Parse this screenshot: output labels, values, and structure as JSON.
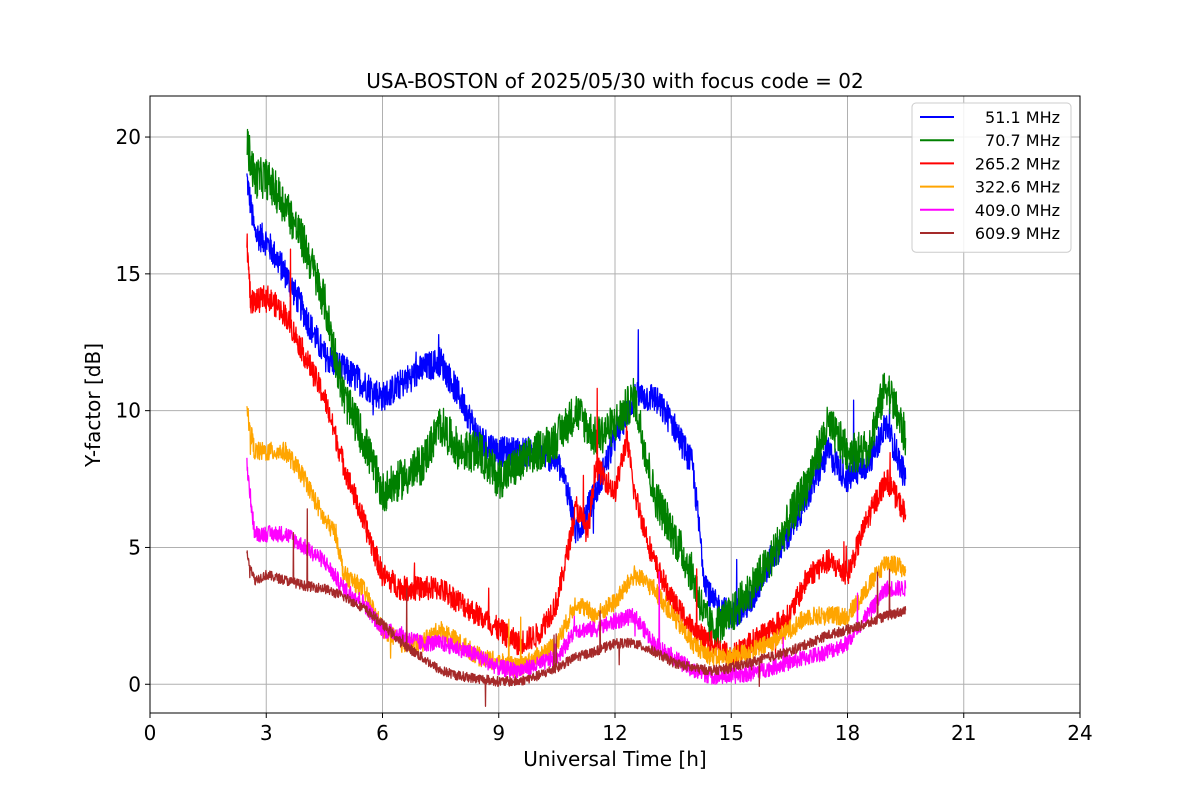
{
  "chart_data": {
    "type": "line",
    "title": "USA-BOSTON of 2025/05/30 with focus code = 02",
    "xlabel": "Universal Time [h]",
    "ylabel": "Y-factor [dB]",
    "xlim": [
      0,
      24
    ],
    "ylim": [
      -1.05,
      21.5
    ],
    "xticks": [
      0,
      3,
      6,
      9,
      12,
      15,
      18,
      21,
      24
    ],
    "yticks": [
      0,
      5,
      10,
      15,
      20
    ],
    "grid": true,
    "legend_position": "top-right",
    "series": [
      {
        "name": "51.1 MHz",
        "color": "#0000ff",
        "x": [
          2.5,
          2.7,
          3.0,
          3.5,
          4.0,
          4.5,
          5.0,
          5.5,
          6.0,
          6.5,
          7.0,
          7.5,
          8.0,
          8.5,
          9.0,
          9.5,
          10.0,
          10.5,
          10.8,
          11.0,
          11.5,
          12.0,
          12.5,
          13.0,
          13.5,
          14.0,
          14.3,
          14.5,
          15.0,
          15.5,
          16.0,
          16.5,
          17.0,
          17.5,
          18.0,
          18.5,
          19.0,
          19.5
        ],
        "y": [
          18.5,
          16.5,
          16.2,
          15.0,
          13.5,
          12.0,
          11.5,
          11.0,
          10.5,
          11.0,
          11.5,
          11.8,
          10.5,
          9.0,
          8.5,
          8.5,
          8.5,
          8.2,
          7.0,
          5.5,
          7.0,
          9.0,
          10.5,
          10.5,
          9.5,
          8.0,
          4.0,
          3.0,
          2.5,
          3.0,
          4.5,
          5.5,
          7.0,
          8.5,
          7.5,
          8.0,
          9.5,
          7.5
        ]
      },
      {
        "name": "70.7 MHz",
        "color": "#008000",
        "x": [
          2.5,
          2.7,
          3.0,
          3.5,
          4.0,
          4.5,
          5.0,
          5.5,
          6.0,
          6.5,
          7.0,
          7.5,
          8.0,
          8.5,
          9.0,
          9.5,
          10.0,
          10.5,
          11.0,
          11.5,
          12.0,
          12.5,
          13.0,
          13.5,
          14.0,
          14.3,
          14.5,
          15.0,
          15.5,
          16.0,
          16.5,
          17.0,
          17.5,
          18.0,
          18.5,
          19.0,
          19.5
        ],
        "y": [
          19.8,
          18.5,
          18.5,
          17.5,
          16.0,
          14.0,
          10.5,
          9.0,
          7.0,
          7.5,
          8.0,
          9.5,
          8.5,
          8.5,
          7.5,
          8.0,
          8.5,
          9.0,
          10.0,
          9.0,
          9.5,
          10.5,
          7.0,
          5.5,
          4.0,
          2.5,
          2.0,
          2.5,
          3.5,
          4.5,
          6.0,
          7.5,
          9.5,
          8.5,
          8.5,
          11.0,
          9.0
        ]
      },
      {
        "name": "265.2 MHz",
        "color": "#ff0000",
        "x": [
          2.5,
          2.6,
          2.8,
          3.0,
          3.5,
          4.0,
          4.5,
          5.0,
          5.5,
          6.0,
          6.5,
          7.0,
          7.5,
          8.0,
          8.5,
          9.0,
          9.5,
          10.0,
          10.5,
          10.8,
          11.0,
          11.3,
          11.5,
          12.0,
          12.3,
          12.5,
          13.0,
          13.5,
          14.0,
          14.5,
          15.0,
          15.5,
          16.0,
          16.5,
          17.0,
          17.5,
          18.0,
          18.5,
          19.0,
          19.5
        ],
        "y": [
          16.2,
          14.0,
          14.0,
          14.2,
          13.5,
          12.0,
          10.5,
          8.0,
          6.0,
          4.0,
          3.5,
          3.5,
          3.5,
          3.0,
          2.5,
          2.0,
          1.5,
          1.8,
          3.0,
          5.0,
          6.5,
          5.5,
          8.0,
          7.0,
          9.0,
          7.0,
          4.5,
          3.0,
          2.0,
          1.5,
          1.0,
          1.5,
          2.0,
          2.5,
          4.0,
          4.5,
          4.0,
          6.0,
          7.5,
          6.2
        ]
      },
      {
        "name": "322.6 MHz",
        "color": "#ffa500",
        "x": [
          2.5,
          2.7,
          3.0,
          3.5,
          4.0,
          4.5,
          4.8,
          5.0,
          5.5,
          6.0,
          6.5,
          7.0,
          7.5,
          8.0,
          8.5,
          9.0,
          9.5,
          10.0,
          10.5,
          11.0,
          11.5,
          12.0,
          12.5,
          13.0,
          13.5,
          14.0,
          14.5,
          15.0,
          15.5,
          16.0,
          16.5,
          17.0,
          17.5,
          18.0,
          18.5,
          19.0,
          19.5
        ],
        "y": [
          10.0,
          8.5,
          8.5,
          8.5,
          7.5,
          6.0,
          5.5,
          4.0,
          3.5,
          2.0,
          1.5,
          1.5,
          2.0,
          1.5,
          1.0,
          0.8,
          0.6,
          1.0,
          1.5,
          3.0,
          2.5,
          3.0,
          4.0,
          3.5,
          2.5,
          1.5,
          1.0,
          1.0,
          1.2,
          1.5,
          2.0,
          2.5,
          2.5,
          2.5,
          3.5,
          4.5,
          4.2
        ]
      },
      {
        "name": "409.0 MHz",
        "color": "#ff00ff",
        "x": [
          2.5,
          2.7,
          3.0,
          3.5,
          4.0,
          4.5,
          5.0,
          5.5,
          6.0,
          6.5,
          7.0,
          7.5,
          8.0,
          8.5,
          9.0,
          9.5,
          10.0,
          10.5,
          11.0,
          11.5,
          12.0,
          12.5,
          13.0,
          13.5,
          14.0,
          14.5,
          15.0,
          15.5,
          16.0,
          16.5,
          17.0,
          17.5,
          18.0,
          18.5,
          19.0,
          19.5
        ],
        "y": [
          8.0,
          5.5,
          5.5,
          5.5,
          5.0,
          4.5,
          3.5,
          3.0,
          2.0,
          1.8,
          1.5,
          1.5,
          1.3,
          1.0,
          0.6,
          0.5,
          0.7,
          1.0,
          2.0,
          2.0,
          2.3,
          2.5,
          1.5,
          1.0,
          0.5,
          0.3,
          0.3,
          0.4,
          0.6,
          0.8,
          1.0,
          1.2,
          1.5,
          2.5,
          3.5,
          3.5
        ]
      },
      {
        "name": "609.9 MHz",
        "color": "#a52a2a",
        "x": [
          2.5,
          2.7,
          3.0,
          3.5,
          4.0,
          4.5,
          5.0,
          5.5,
          6.0,
          6.5,
          7.0,
          7.5,
          8.0,
          8.5,
          9.0,
          9.5,
          10.0,
          10.5,
          11.0,
          11.5,
          12.0,
          12.5,
          13.0,
          13.5,
          14.0,
          14.5,
          15.0,
          15.5,
          16.0,
          16.5,
          17.0,
          17.5,
          18.0,
          18.5,
          19.0,
          19.5
        ],
        "y": [
          4.8,
          3.8,
          4.0,
          3.8,
          3.6,
          3.5,
          3.2,
          2.8,
          2.2,
          1.5,
          1.0,
          0.5,
          0.3,
          0.2,
          0.1,
          0.1,
          0.3,
          0.6,
          1.0,
          1.2,
          1.5,
          1.5,
          1.2,
          0.8,
          0.6,
          0.5,
          0.6,
          0.8,
          1.0,
          1.2,
          1.5,
          1.8,
          2.0,
          2.2,
          2.5,
          2.7
        ]
      }
    ]
  }
}
